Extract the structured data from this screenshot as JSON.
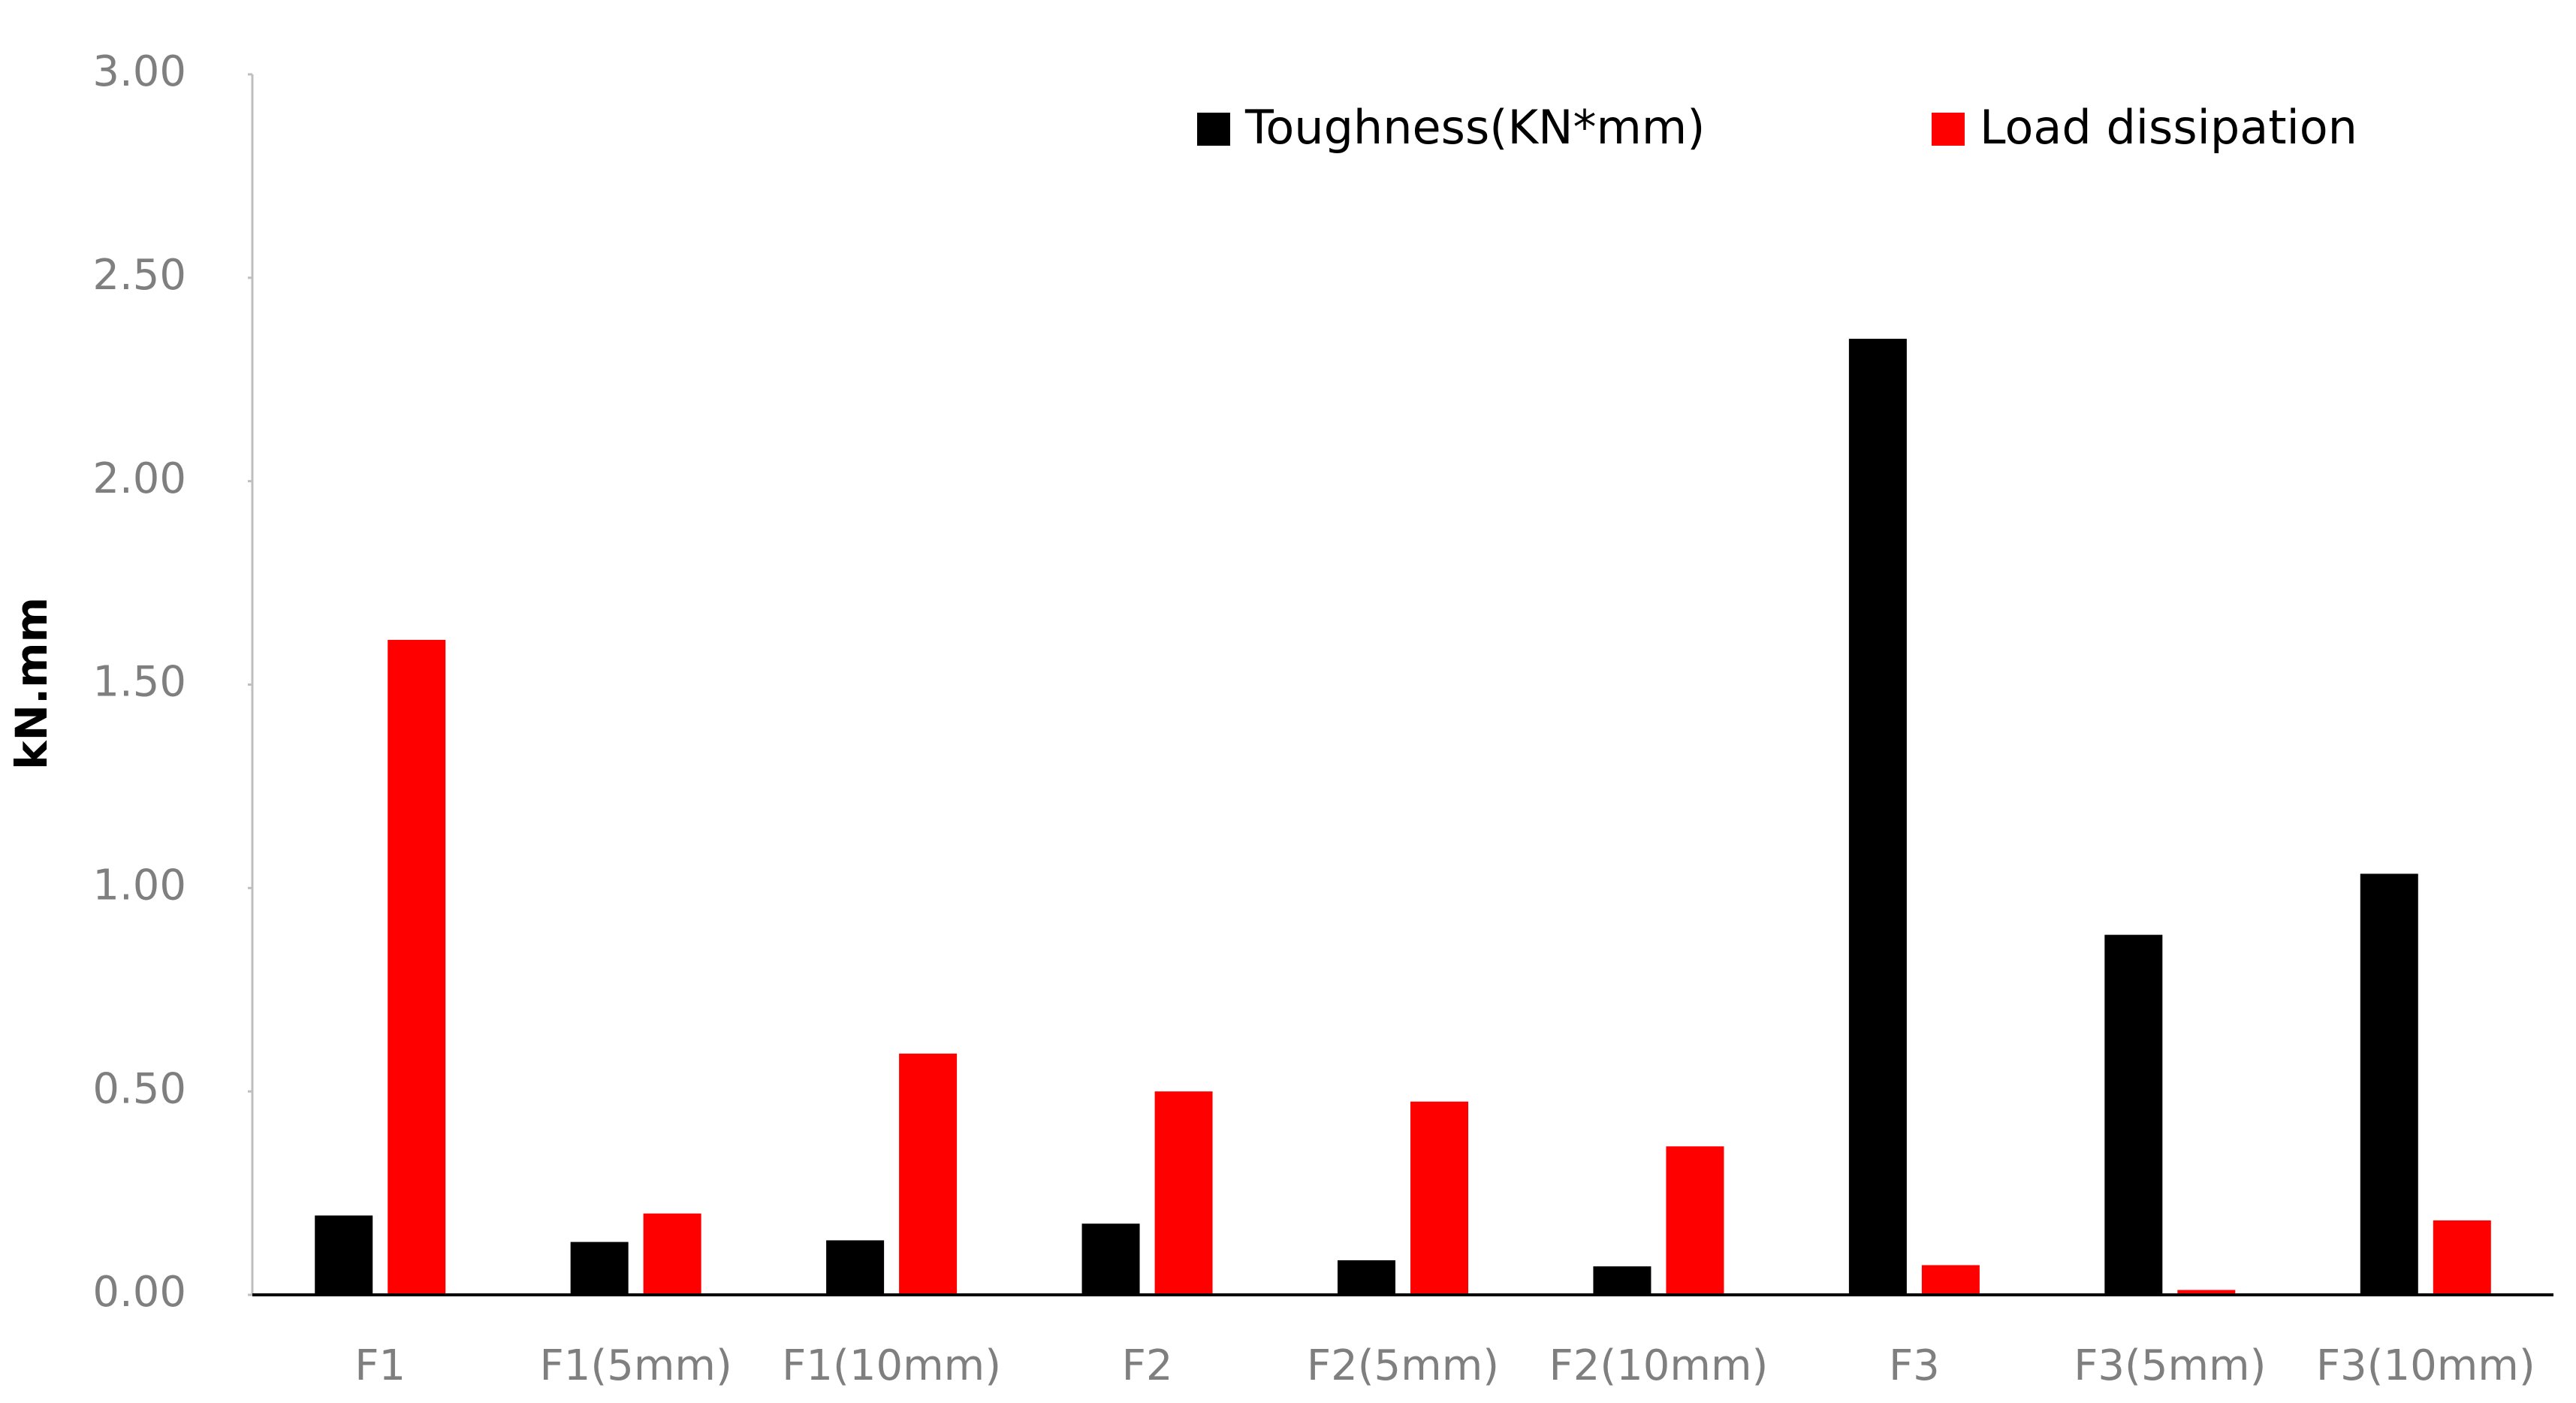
{
  "chart_data": {
    "type": "bar",
    "y_label": "kN.mm",
    "categories": [
      "F1",
      "F1(5mm)",
      "F1(10mm)",
      "F2",
      "F2(5mm)",
      "F2(10mm)",
      "F3",
      "F3(5mm)",
      "F3(10mm)"
    ],
    "series": [
      {
        "name": "Toughness(KN*mm)",
        "color": "#000000",
        "values": [
          0.195,
          0.13,
          0.134,
          0.175,
          0.085,
          0.07,
          2.35,
          0.885,
          1.035
        ]
      },
      {
        "name": "Load dissipation",
        "color": "#ff0000",
        "values": [
          1.61,
          0.2,
          0.593,
          0.5,
          0.475,
          0.365,
          0.073,
          0.012,
          0.183
        ]
      }
    ],
    "ylim": [
      0,
      3
    ],
    "yticks": [
      {
        "value": 0,
        "label": "0.00"
      },
      {
        "value": 0.5,
        "label": "0.50"
      },
      {
        "value": 1,
        "label": "1.00"
      },
      {
        "value": 1.5,
        "label": "1.50"
      },
      {
        "value": 2,
        "label": "2.00"
      },
      {
        "value": 2.5,
        "label": "2.50"
      },
      {
        "value": 3,
        "label": "3.00"
      }
    ],
    "grid": false,
    "legend": "top-right"
  }
}
